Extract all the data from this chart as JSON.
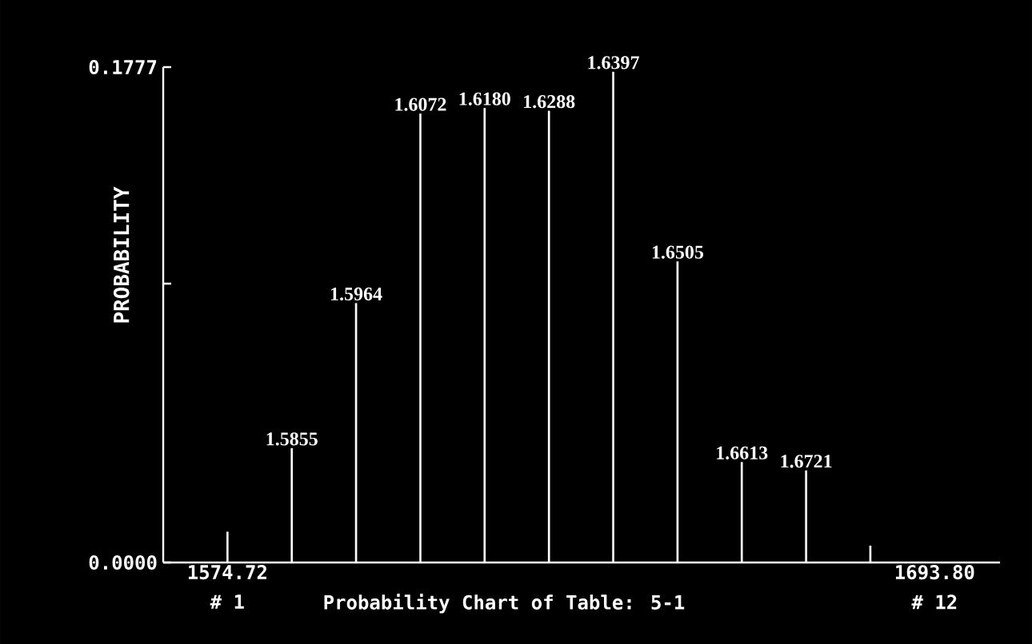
{
  "chart_data": {
    "type": "bar",
    "title": "Probability Chart of Table: 5-1",
    "ylabel": "PROBABILITY",
    "x": [
      1574.72,
      1585.55,
      1596.37,
      1607.2,
      1618.02,
      1628.85,
      1639.67,
      1650.5,
      1661.32,
      1672.15,
      1682.97
    ],
    "values": [
      0.011,
      0.041,
      0.093,
      0.161,
      0.163,
      0.162,
      0.176,
      0.108,
      0.036,
      0.033,
      0.006
    ],
    "color": "#ffffff",
    "xlim": [
      1563.9,
      1704.8
    ],
    "xticks": [
      1574.72,
      {
        "value": 1693.8,
        "label": "1693.80"
      }
    ],
    "ylim": [
      0,
      0.1777
    ],
    "yticks": [
      {
        "value": 0,
        "label": "0.0000"
      },
      {
        "value": 0.1,
        "label": null
      },
      0.1777
    ],
    "annotations": [
      {
        "text": "1.5855",
        "x": 1585.55,
        "y": 0.041
      },
      {
        "text": "1.5964",
        "x": 1596.37,
        "y": 0.093
      },
      {
        "text": "1.6072",
        "x": 1607.2,
        "y": 0.161
      },
      {
        "text": "1.6180",
        "x": 1618.02,
        "y": 0.163
      },
      {
        "text": "1.6288",
        "x": 1628.85,
        "y": 0.162
      },
      {
        "text": "1.6397",
        "x": 1639.67,
        "y": 0.176
      },
      {
        "text": "1.6505",
        "x": 1650.5,
        "y": 0.108
      },
      {
        "text": "1.6613",
        "x": 1661.32,
        "y": 0.036
      },
      {
        "text": "1.6721",
        "x": 1672.15,
        "y": 0.033
      },
      "# 1",
      "# 12"
    ]
  }
}
